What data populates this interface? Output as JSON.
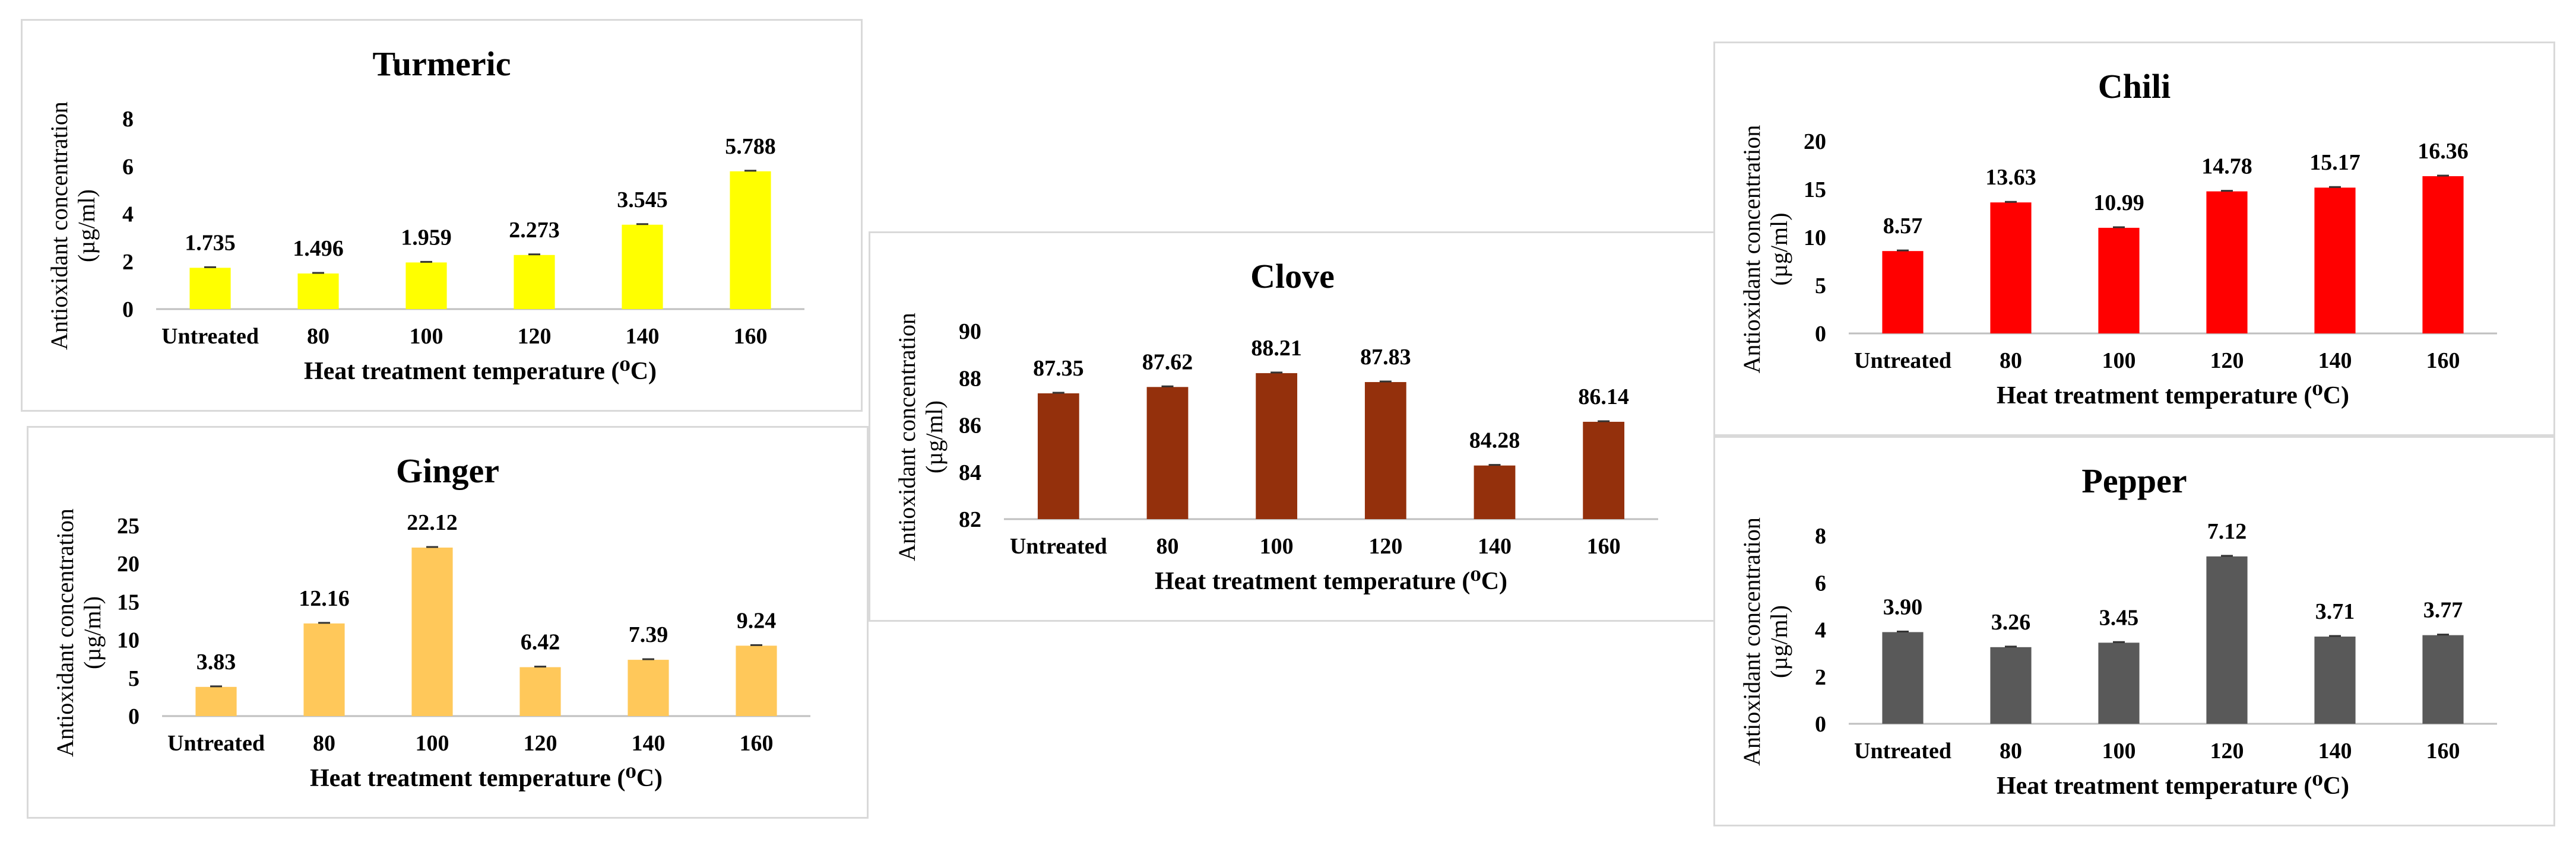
{
  "figure": {
    "charts": [
      {
        "id": "turmeric",
        "type": "bar",
        "title": "Turmeric",
        "color": "#FFFF00",
        "categories": [
          "Untreated",
          "80",
          "100",
          "120",
          "140",
          "160"
        ],
        "values": [
          1.735,
          1.496,
          1.959,
          2.273,
          3.545,
          5.788
        ],
        "labels": [
          "1.735",
          "1.496",
          "1.959",
          "2.273",
          "3.545",
          "5.788"
        ],
        "ylim": [
          0,
          8
        ],
        "yticks": [
          "0",
          "2",
          "4",
          "6",
          "8"
        ],
        "xlabel": "Heat treatment temperature (⁰C)",
        "ylabel_line1": "Antioxidant concentration",
        "ylabel_line2": "(µg/ml)"
      },
      {
        "id": "ginger",
        "type": "bar",
        "title": "Ginger",
        "color": "#FFC85A",
        "categories": [
          "Untreated",
          "80",
          "100",
          "120",
          "140",
          "160"
        ],
        "values": [
          3.83,
          12.16,
          22.12,
          6.42,
          7.39,
          9.24
        ],
        "labels": [
          "3.83",
          "12.16",
          "22.12",
          "6.42",
          "7.39",
          "9.24"
        ],
        "ylim": [
          0,
          25
        ],
        "yticks": [
          "0",
          "5",
          "10",
          "15",
          "20",
          "25"
        ],
        "xlabel": "Heat treatment temperature (⁰C)",
        "ylabel_line1": "Antioxidant concentration",
        "ylabel_line2": "(µg/ml)"
      },
      {
        "id": "clove",
        "type": "bar",
        "title": "Clove",
        "color": "#94300C",
        "categories": [
          "Untreated",
          "80",
          "100",
          "120",
          "140",
          "160"
        ],
        "values": [
          87.35,
          87.62,
          88.21,
          87.83,
          84.28,
          86.14
        ],
        "labels": [
          "87.35",
          "87.62",
          "88.21",
          "87.83",
          "84.28",
          "86.14"
        ],
        "ylim": [
          82,
          90
        ],
        "yticks": [
          "82",
          "84",
          "86",
          "88",
          "90"
        ],
        "xlabel": "Heat treatment temperature (⁰C)",
        "ylabel_line1": "Antioxidant concentration",
        "ylabel_line2": "(µg/ml)"
      },
      {
        "id": "chili",
        "type": "bar",
        "title": "Chili",
        "color": "#FF0000",
        "categories": [
          "Untreated",
          "80",
          "100",
          "120",
          "140",
          "160"
        ],
        "values": [
          8.57,
          13.63,
          10.99,
          14.78,
          15.17,
          16.36
        ],
        "labels": [
          "8.57",
          "13.63",
          "10.99",
          "14.78",
          "15.17",
          "16.36"
        ],
        "ylim": [
          0,
          20
        ],
        "yticks": [
          "0",
          "5",
          "10",
          "15",
          "20"
        ],
        "xlabel": "Heat treatment temperature (⁰C)",
        "ylabel_line1": "Antioxidant concentration",
        "ylabel_line2": "(µg/ml)"
      },
      {
        "id": "pepper",
        "type": "bar",
        "title": "Pepper",
        "color": "#595959",
        "categories": [
          "Untreated",
          "80",
          "100",
          "120",
          "140",
          "160"
        ],
        "values": [
          3.9,
          3.26,
          3.45,
          7.12,
          3.71,
          3.77
        ],
        "labels": [
          "3.90",
          "3.26",
          "3.45",
          "7.12",
          "3.71",
          "3.77"
        ],
        "ylim": [
          0,
          8
        ],
        "yticks": [
          "0",
          "2",
          "4",
          "6",
          "8"
        ],
        "xlabel": "Heat treatment temperature (⁰C)",
        "ylabel_line1": "Antioxidant concentration",
        "ylabel_line2": "(µg/ml)"
      }
    ]
  },
  "chart_data": [
    {
      "type": "bar",
      "title": "Turmeric",
      "categories": [
        "Untreated",
        "80",
        "100",
        "120",
        "140",
        "160"
      ],
      "values": [
        1.735,
        1.496,
        1.959,
        2.273,
        3.545,
        5.788
      ],
      "xlabel": "Heat treatment temperature (⁰C)",
      "ylabel": "Antioxidant concentration (µg/ml)",
      "ylim": [
        0,
        8
      ]
    },
    {
      "type": "bar",
      "title": "Ginger",
      "categories": [
        "Untreated",
        "80",
        "100",
        "120",
        "140",
        "160"
      ],
      "values": [
        3.83,
        12.16,
        22.12,
        6.42,
        7.39,
        9.24
      ],
      "xlabel": "Heat treatment temperature (⁰C)",
      "ylabel": "Antioxidant concentration (µg/ml)",
      "ylim": [
        0,
        25
      ]
    },
    {
      "type": "bar",
      "title": "Clove",
      "categories": [
        "Untreated",
        "80",
        "100",
        "120",
        "140",
        "160"
      ],
      "values": [
        87.35,
        87.62,
        88.21,
        87.83,
        84.28,
        86.14
      ],
      "xlabel": "Heat treatment temperature (⁰C)",
      "ylabel": "Antioxidant concentration (µg/ml)",
      "ylim": [
        82,
        90
      ]
    },
    {
      "type": "bar",
      "title": "Chili",
      "categories": [
        "Untreated",
        "80",
        "100",
        "120",
        "140",
        "160"
      ],
      "values": [
        8.57,
        13.63,
        10.99,
        14.78,
        15.17,
        16.36
      ],
      "xlabel": "Heat treatment temperature (⁰C)",
      "ylabel": "Antioxidant concentration (µg/ml)",
      "ylim": [
        0,
        20
      ]
    },
    {
      "type": "bar",
      "title": "Pepper",
      "categories": [
        "Untreated",
        "80",
        "100",
        "120",
        "140",
        "160"
      ],
      "values": [
        3.9,
        3.26,
        3.45,
        7.12,
        3.71,
        3.77
      ],
      "xlabel": "Heat treatment temperature (⁰C)",
      "ylabel": "Antioxidant concentration (µg/ml)",
      "ylim": [
        0,
        8
      ]
    }
  ]
}
